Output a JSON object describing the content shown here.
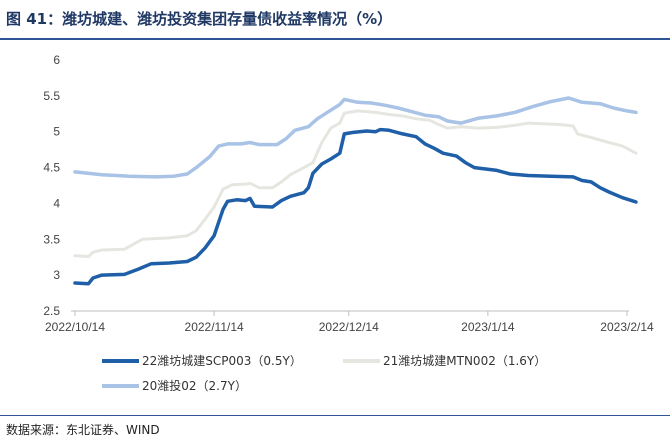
{
  "title": "图 41：潍坊城建、潍坊投资集团存量债收益率情况（%）",
  "source": "数据来源：东北证券、WIND",
  "chart_data": {
    "type": "line",
    "ylim": [
      2.5,
      6
    ],
    "yticks": [
      "2.5",
      "3",
      "3.5",
      "4",
      "4.5",
      "5",
      "5.5",
      "6"
    ],
    "xlim": [
      "2022-10-14",
      "2023-02-14"
    ],
    "xticks": [
      {
        "label": "2022/10/14",
        "date": "2022-10-14"
      },
      {
        "label": "2022/11/14",
        "date": "2022-11-14"
      },
      {
        "label": "2022/12/14",
        "date": "2022-12-14"
      },
      {
        "label": "2023/1/14",
        "date": "2023-01-14"
      },
      {
        "label": "2023/2/14",
        "date": "2023-02-14"
      }
    ],
    "grid": false,
    "legend": "bottom",
    "series": [
      {
        "name": "22潍坊城建SCP003（0.5Y）",
        "color": "#1f5fa8",
        "width": 3.5,
        "points": [
          [
            "2022-10-14",
            2.89
          ],
          [
            "2022-10-17",
            2.88
          ],
          [
            "2022-10-18",
            2.96
          ],
          [
            "2022-10-20",
            3.0
          ],
          [
            "2022-10-25",
            3.01
          ],
          [
            "2022-10-28",
            3.08
          ],
          [
            "2022-10-31",
            3.16
          ],
          [
            "2022-11-04",
            3.17
          ],
          [
            "2022-11-08",
            3.19
          ],
          [
            "2022-11-10",
            3.25
          ],
          [
            "2022-11-12",
            3.38
          ],
          [
            "2022-11-14",
            3.55
          ],
          [
            "2022-11-16",
            3.92
          ],
          [
            "2022-11-17",
            4.03
          ],
          [
            "2022-11-19",
            4.05
          ],
          [
            "2022-11-21",
            4.04
          ],
          [
            "2022-11-22",
            4.07
          ],
          [
            "2022-11-23",
            3.96
          ],
          [
            "2022-11-27",
            3.95
          ],
          [
            "2022-11-29",
            4.04
          ],
          [
            "2022-12-01",
            4.1
          ],
          [
            "2022-12-04",
            4.15
          ],
          [
            "2022-12-05",
            4.22
          ],
          [
            "2022-12-06",
            4.42
          ],
          [
            "2022-12-08",
            4.55
          ],
          [
            "2022-12-10",
            4.62
          ],
          [
            "2022-12-12",
            4.7
          ],
          [
            "2022-12-13",
            4.97
          ],
          [
            "2022-12-15",
            4.99
          ],
          [
            "2022-12-18",
            5.01
          ],
          [
            "2022-12-20",
            5.0
          ],
          [
            "2022-12-21",
            5.03
          ],
          [
            "2022-12-23",
            5.02
          ],
          [
            "2022-12-26",
            4.97
          ],
          [
            "2022-12-29",
            4.93
          ],
          [
            "2022-12-31",
            4.83
          ],
          [
            "2023-01-02",
            4.77
          ],
          [
            "2023-01-04",
            4.7
          ],
          [
            "2023-01-07",
            4.66
          ],
          [
            "2023-01-09",
            4.57
          ],
          [
            "2023-01-11",
            4.5
          ],
          [
            "2023-01-16",
            4.46
          ],
          [
            "2023-01-19",
            4.41
          ],
          [
            "2023-01-23",
            4.39
          ],
          [
            "2023-01-28",
            4.38
          ],
          [
            "2023-02-02",
            4.37
          ],
          [
            "2023-02-04",
            4.32
          ],
          [
            "2023-02-06",
            4.3
          ],
          [
            "2023-02-08",
            4.22
          ],
          [
            "2023-02-10",
            4.16
          ],
          [
            "2023-02-13",
            4.08
          ],
          [
            "2023-02-16",
            4.02
          ]
        ]
      },
      {
        "name": "21潍坊城建MTN002（1.6Y）",
        "color": "#e6e6e1",
        "width": 3,
        "points": [
          [
            "2022-10-14",
            3.27
          ],
          [
            "2022-10-17",
            3.26
          ],
          [
            "2022-10-18",
            3.32
          ],
          [
            "2022-10-20",
            3.35
          ],
          [
            "2022-10-25",
            3.36
          ],
          [
            "2022-10-27",
            3.43
          ],
          [
            "2022-10-29",
            3.5
          ],
          [
            "2022-11-04",
            3.52
          ],
          [
            "2022-11-08",
            3.55
          ],
          [
            "2022-11-10",
            3.62
          ],
          [
            "2022-11-12",
            3.78
          ],
          [
            "2022-11-14",
            3.95
          ],
          [
            "2022-11-16",
            4.2
          ],
          [
            "2022-11-18",
            4.26
          ],
          [
            "2022-11-21",
            4.27
          ],
          [
            "2022-11-22",
            4.28
          ],
          [
            "2022-11-24",
            4.22
          ],
          [
            "2022-11-27",
            4.22
          ],
          [
            "2022-11-29",
            4.3
          ],
          [
            "2022-12-01",
            4.4
          ],
          [
            "2022-12-04",
            4.5
          ],
          [
            "2022-12-06",
            4.57
          ],
          [
            "2022-12-08",
            4.85
          ],
          [
            "2022-12-10",
            5.05
          ],
          [
            "2022-12-12",
            5.12
          ],
          [
            "2022-12-13",
            5.26
          ],
          [
            "2022-12-16",
            5.29
          ],
          [
            "2022-12-20",
            5.27
          ],
          [
            "2022-12-23",
            5.24
          ],
          [
            "2022-12-26",
            5.22
          ],
          [
            "2022-12-29",
            5.18
          ],
          [
            "2023-01-01",
            5.16
          ],
          [
            "2023-01-03",
            5.1
          ],
          [
            "2023-01-05",
            5.05
          ],
          [
            "2023-01-08",
            5.07
          ],
          [
            "2023-01-12",
            5.05
          ],
          [
            "2023-01-16",
            5.06
          ],
          [
            "2023-01-20",
            5.09
          ],
          [
            "2023-01-23",
            5.12
          ],
          [
            "2023-01-30",
            5.1
          ],
          [
            "2023-02-02",
            5.08
          ],
          [
            "2023-02-03",
            4.97
          ],
          [
            "2023-02-06",
            4.92
          ],
          [
            "2023-02-10",
            4.85
          ],
          [
            "2023-02-13",
            4.8
          ],
          [
            "2023-02-16",
            4.7
          ]
        ]
      },
      {
        "name": "20潍投02（2.7Y）",
        "color": "#a8c3e6",
        "width": 3.5,
        "points": [
          [
            "2022-10-14",
            4.44
          ],
          [
            "2022-10-20",
            4.4
          ],
          [
            "2022-10-26",
            4.38
          ],
          [
            "2022-11-01",
            4.37
          ],
          [
            "2022-11-05",
            4.38
          ],
          [
            "2022-11-08",
            4.41
          ],
          [
            "2022-11-10",
            4.5
          ],
          [
            "2022-11-13",
            4.65
          ],
          [
            "2022-11-15",
            4.8
          ],
          [
            "2022-11-17",
            4.83
          ],
          [
            "2022-11-20",
            4.83
          ],
          [
            "2022-11-22",
            4.85
          ],
          [
            "2022-11-24",
            4.82
          ],
          [
            "2022-11-28",
            4.82
          ],
          [
            "2022-11-30",
            4.9
          ],
          [
            "2022-12-02",
            5.02
          ],
          [
            "2022-12-05",
            5.07
          ],
          [
            "2022-12-07",
            5.18
          ],
          [
            "2022-12-10",
            5.3
          ],
          [
            "2022-12-12",
            5.38
          ],
          [
            "2022-12-13",
            5.45
          ],
          [
            "2022-12-16",
            5.41
          ],
          [
            "2022-12-19",
            5.4
          ],
          [
            "2022-12-22",
            5.37
          ],
          [
            "2022-12-25",
            5.33
          ],
          [
            "2022-12-28",
            5.28
          ],
          [
            "2022-12-31",
            5.23
          ],
          [
            "2023-01-03",
            5.21
          ],
          [
            "2023-01-05",
            5.15
          ],
          [
            "2023-01-08",
            5.12
          ],
          [
            "2023-01-12",
            5.19
          ],
          [
            "2023-01-16",
            5.22
          ],
          [
            "2023-01-20",
            5.27
          ],
          [
            "2023-01-24",
            5.35
          ],
          [
            "2023-01-28",
            5.42
          ],
          [
            "2023-02-01",
            5.47
          ],
          [
            "2023-02-04",
            5.41
          ],
          [
            "2023-02-08",
            5.39
          ],
          [
            "2023-02-11",
            5.33
          ],
          [
            "2023-02-14",
            5.29
          ],
          [
            "2023-02-16",
            5.27
          ]
        ]
      }
    ]
  }
}
